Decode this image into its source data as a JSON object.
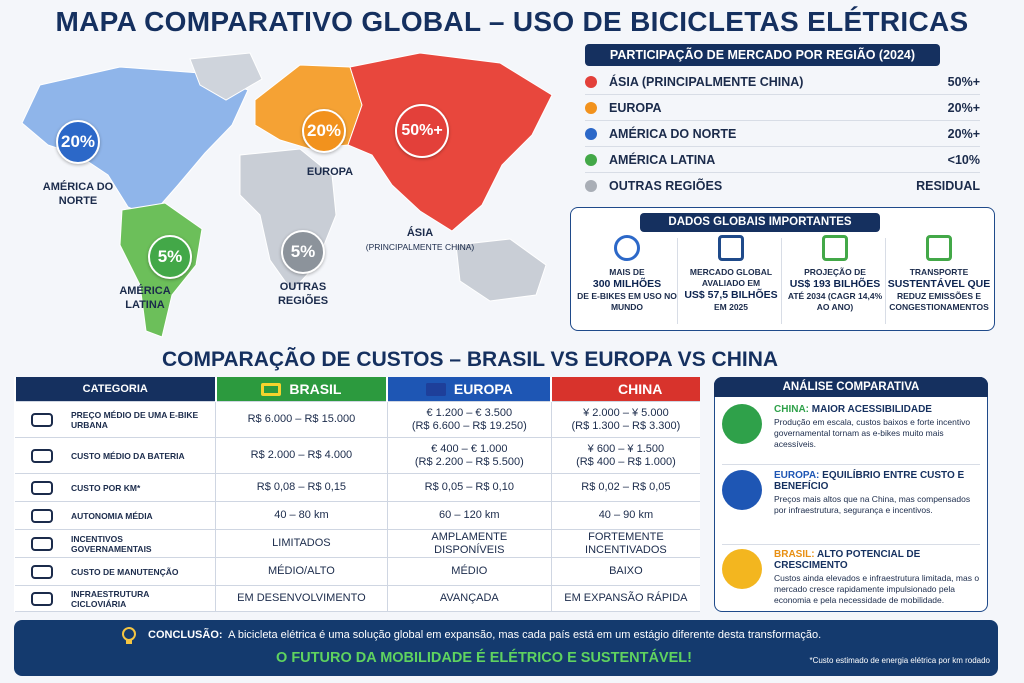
{
  "title": "MAPA COMPARATIVO GLOBAL – USO DE BICICLETAS ELÉTRICAS",
  "map": {
    "regions": [
      {
        "value": "20%",
        "name": "AMÉRICA DO NORTE"
      },
      {
        "value": "20%",
        "name": "EUROPA"
      },
      {
        "value": "50%+",
        "name": "ÁSIA",
        "note": "(PRINCIPALMENTE CHINA)"
      },
      {
        "value": "5%",
        "name": "AMÉRICA LATINA"
      },
      {
        "value": "5%",
        "name": "OUTRAS REGIÕES"
      }
    ]
  },
  "market_share": {
    "title": "PARTICIPAÇÃO DE MERCADO POR REGIÃO (2024)",
    "rows": [
      {
        "name": "ÁSIA (PRINCIPALMENTE CHINA)",
        "value": "50%+",
        "color": "#e3403a"
      },
      {
        "name": "EUROPA",
        "value": "20%+",
        "color": "#f2921d"
      },
      {
        "name": "AMÉRICA DO NORTE",
        "value": "20%+",
        "color": "#2c68c8"
      },
      {
        "name": "AMÉRICA LATINA",
        "value": "<10%",
        "color": "#43a848"
      },
      {
        "name": "OUTRAS REGIÕES",
        "value": "RESIDUAL",
        "color": "#a9aeb6"
      }
    ]
  },
  "global_data": {
    "title": "DADOS GLOBAIS IMPORTANTES",
    "items": [
      {
        "pre": "MAIS DE",
        "strong": "300 MILHÕES",
        "post": "DE E-BIKES EM USO NO MUNDO"
      },
      {
        "pre": "MERCADO GLOBAL AVALIADO EM",
        "strong": "US$ 57,5 BILHÕES",
        "post": "EM 2025"
      },
      {
        "pre": "PROJEÇÃO DE",
        "strong": "US$ 193 BILHÕES",
        "post": "ATÉ 2034 (CAGR 14,4% AO ANO)"
      },
      {
        "pre": "TRANSPORTE",
        "strong": "SUSTENTÁVEL QUE",
        "post": "REDUZ EMISSÕES E CONGESTIONAMENTOS"
      }
    ]
  },
  "cost_title": "COMPARAÇÃO DE CUSTOS – BRASIL VS EUROPA VS CHINA",
  "table": {
    "header": [
      "CATEGORIA",
      "BRASIL",
      "EUROPA",
      "CHINA"
    ],
    "rows": [
      [
        "PREÇO MÉDIO DE UMA E-BIKE URBANA",
        "R$ 6.000 – R$ 15.000",
        "€ 1.200 – € 3.500\n(R$ 6.600 – R$ 19.250)",
        "¥ 2.000 – ¥ 5.000\n(R$ 1.300 – R$ 3.300)"
      ],
      [
        "CUSTO MÉDIO DA BATERIA",
        "R$ 2.000 – R$ 4.000",
        "€ 400 – € 1.000\n(R$ 2.200 – R$ 5.500)",
        "¥ 600 – ¥ 1.500\n(R$ 400 – R$ 1.000)"
      ],
      [
        "CUSTO POR KM*",
        "R$ 0,08 – R$ 0,15",
        "R$ 0,05 – R$ 0,10",
        "R$ 0,02 – R$ 0,05"
      ],
      [
        "AUTONOMIA MÉDIA",
        "40 – 80 km",
        "60 – 120 km",
        "40 – 90 km"
      ],
      [
        "INCENTIVOS GOVERNAMENTAIS",
        "LIMITADOS",
        "AMPLAMENTE\nDISPONÍVEIS",
        "FORTEMENTE\nINCENTIVADOS"
      ],
      [
        "CUSTO DE MANUTENÇÃO",
        "MÉDIO/ALTO",
        "MÉDIO",
        "BAIXO"
      ],
      [
        "INFRAESTRUTURA CICLOVIÁRIA",
        "EM DESENVOLVIMENTO",
        "AVANÇADA",
        "EM EXPANSÃO RÁPIDA"
      ]
    ]
  },
  "analysis": {
    "title": "ANÁLISE COMPARATIVA",
    "items": [
      {
        "country": "CHINA:",
        "heading": "MAIOR ACESSIBILIDADE",
        "text": "Produção em escala, custos baixos e forte incentivo governamental tornam as e-bikes muito mais acessíveis."
      },
      {
        "country": "EUROPA:",
        "heading": "EQUILÍBRIO ENTRE CUSTO E BENEFÍCIO",
        "text": "Preços mais altos que na China, mas compensados por infraestrutura, segurança e incentivos."
      },
      {
        "country": "BRASIL:",
        "heading": "ALTO POTENCIAL DE CRESCIMENTO",
        "text": "Custos ainda elevados e infraestrutura limitada, mas o mercado cresce rapidamente impulsionado pela economia e pela necessidade de mobilidade."
      }
    ]
  },
  "conclusion": {
    "label": "CONCLUSÃO:",
    "text": "A bicicleta elétrica é uma solução global em expansão, mas cada país está em um estágio diferente desta transformação.",
    "slogan": "O FUTURO DA MOBILIDADE É ELÉTRICO E SUSTENTÁVEL!",
    "footnote": "*Custo estimado de energia elétrica por km rodado"
  }
}
